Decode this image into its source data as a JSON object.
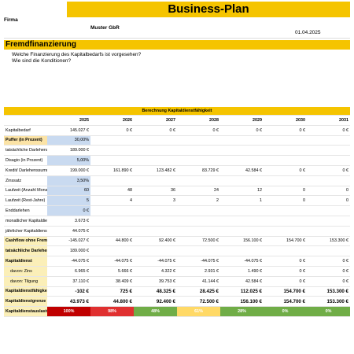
{
  "header": {
    "title": "Business-Plan",
    "firma_label": "Firma",
    "firma": "Muster GbR",
    "date": "01.04.2025"
  },
  "section": {
    "title": "Fremdfinanzierung",
    "questions": [
      "Welche Finanzierung des Kapitalbedarfs ist vorgesehen?",
      "Wie sind die Konditionen?"
    ]
  },
  "table": {
    "title": "Berechnung Kapitaldienstfähigkeit",
    "columns": [
      "2025",
      "2026",
      "2027",
      "2028",
      "2029",
      "2030",
      "2031"
    ],
    "rows": [
      {
        "label": "Kapitalbedarf",
        "cells": [
          "145.027 €",
          "0 €",
          "0 €",
          "0 €",
          "0 €",
          "0 €",
          "0 €"
        ]
      },
      {
        "label": "Puffer (in Prozent)",
        "cells": [
          "30,00%"
        ]
      },
      {
        "label": "tatsächliche Darlehenssumme",
        "cells": [
          "189.000 €"
        ]
      },
      {
        "label": "Disagio (in Prozent)",
        "cells": [
          "5,00%"
        ]
      },
      {
        "label": "Kredit/ Darlehenssumme",
        "cells": [
          "199.000 €",
          "161.890 €",
          "123.482 €",
          "83.729 €",
          "42.584 €",
          "0 €",
          "0 €"
        ]
      },
      {
        "label": "Zinssatz",
        "cells": [
          "3,50%"
        ]
      },
      {
        "label": "Laufzeit (Anzahl Monatsraten)",
        "cells": [
          "60",
          "48",
          "36",
          "24",
          "12",
          "0",
          "0"
        ]
      },
      {
        "label": "Laufzeit (Rest-Jahre)",
        "cells": [
          "5",
          "4",
          "3",
          "2",
          "1",
          "0",
          "0"
        ]
      },
      {
        "label": "Enddarlehen",
        "cells": [
          "0 €"
        ]
      },
      {
        "label": "monatlicher Kapitaldienst",
        "cells": [
          "3.673 €"
        ]
      },
      {
        "label": "jährlicher Kapitaldienst",
        "cells": [
          "44.075 €"
        ]
      },
      {
        "label": "Cashflow ohne Fremdfinanzierung",
        "cells": [
          "-145.027 €",
          "44.800 €",
          "92.400 €",
          "72.500 €",
          "156.100 €",
          "154.700 €",
          "153.300 €"
        ]
      },
      {
        "label": "tatsächliche Darlehenssumme",
        "cells": [
          "189.000 €"
        ]
      },
      {
        "label": "Kapitaldienst",
        "cells": [
          "-44.075 €",
          "-44.075 €",
          "-44.075 €",
          "-44.075 €",
          "-44.075 €",
          "0 €",
          "0 €"
        ]
      },
      {
        "label": "davon: Zins",
        "cells": [
          "6.965 €",
          "5.666 €",
          "4.322 €",
          "2.931 €",
          "1.490 €",
          "0 €",
          "0 €"
        ]
      },
      {
        "label": "davon: Tilgung",
        "cells": [
          "37.110 €",
          "38.409 €",
          "39.753 €",
          "41.144 €",
          "42.584 €",
          "0 €",
          "0 €"
        ]
      },
      {
        "label": "Kapitaldienstfähigkeit",
        "cells": [
          "-102 €",
          "725 €",
          "48.325 €",
          "28.425 €",
          "112.025 €",
          "154.700 €",
          "153.300 €"
        ]
      },
      {
        "label": "Kapitaldienstgrenze",
        "cells": [
          "43.973 €",
          "44.800 €",
          "92.400 €",
          "72.500 €",
          "156.100 €",
          "154.700 €",
          "153.300 €"
        ]
      },
      {
        "label": "Kapitaldienstauslastung",
        "cells": [
          "100%",
          "98%",
          "48%",
          "61%",
          "28%",
          "0%",
          "0%"
        ]
      }
    ]
  }
}
